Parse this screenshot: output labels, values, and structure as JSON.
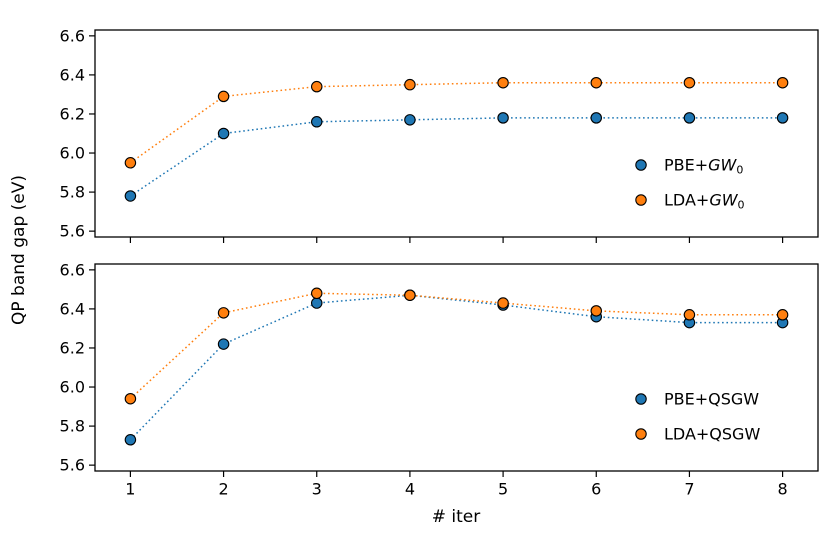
{
  "figure": {
    "xlabel": "# iter",
    "ylabel": "QP band gap (eV)"
  },
  "chart_data": [
    {
      "type": "line",
      "panel": "top",
      "x": [
        1,
        2,
        3,
        4,
        5,
        6,
        7,
        8
      ],
      "xticks": [
        "1",
        "2",
        "3",
        "4",
        "5",
        "6",
        "7",
        "8"
      ],
      "yticks": [
        "5.6",
        "5.8",
        "6.0",
        "6.2",
        "6.4",
        "6.6"
      ],
      "ylim": [
        5.6,
        6.6
      ],
      "grid": false,
      "line_style": "dotted",
      "marker": "circle",
      "legend_position": "lower right",
      "series": [
        {
          "name": "PBE+GW0",
          "label": "PBE+GW₀",
          "label_segments": [
            {
              "t": "PBE+"
            },
            {
              "t": "GW",
              "italic": true
            },
            {
              "t": "0",
              "sub": true
            }
          ],
          "color": "#1f77b4",
          "values": [
            5.78,
            6.1,
            6.16,
            6.17,
            6.18,
            6.18,
            6.18,
            6.18
          ]
        },
        {
          "name": "LDA+GW0",
          "label": "LDA+GW₀",
          "label_segments": [
            {
              "t": "LDA+"
            },
            {
              "t": "GW",
              "italic": true
            },
            {
              "t": "0",
              "sub": true
            }
          ],
          "color": "#ff7f0e",
          "values": [
            5.95,
            6.29,
            6.34,
            6.35,
            6.36,
            6.36,
            6.36,
            6.36
          ]
        }
      ]
    },
    {
      "type": "line",
      "panel": "bottom",
      "x": [
        1,
        2,
        3,
        4,
        5,
        6,
        7,
        8
      ],
      "xticks": [
        "1",
        "2",
        "3",
        "4",
        "5",
        "6",
        "7",
        "8"
      ],
      "yticks": [
        "5.6",
        "5.8",
        "6.0",
        "6.2",
        "6.4",
        "6.6"
      ],
      "ylim": [
        5.6,
        6.6
      ],
      "grid": false,
      "line_style": "dotted",
      "marker": "circle",
      "legend_position": "lower right",
      "series": [
        {
          "name": "PBE+QSGW",
          "label": "PBE+QSGW",
          "label_segments": [
            {
              "t": "PBE+QSGW"
            }
          ],
          "color": "#1f77b4",
          "values": [
            5.73,
            6.22,
            6.43,
            6.47,
            6.42,
            6.36,
            6.33,
            6.33
          ]
        },
        {
          "name": "LDA+QSGW",
          "label": "LDA+QSGW",
          "label_segments": [
            {
              "t": "LDA+QSGW"
            }
          ],
          "color": "#ff7f0e",
          "values": [
            5.94,
            6.38,
            6.48,
            6.47,
            6.43,
            6.39,
            6.37,
            6.37
          ]
        }
      ]
    }
  ]
}
